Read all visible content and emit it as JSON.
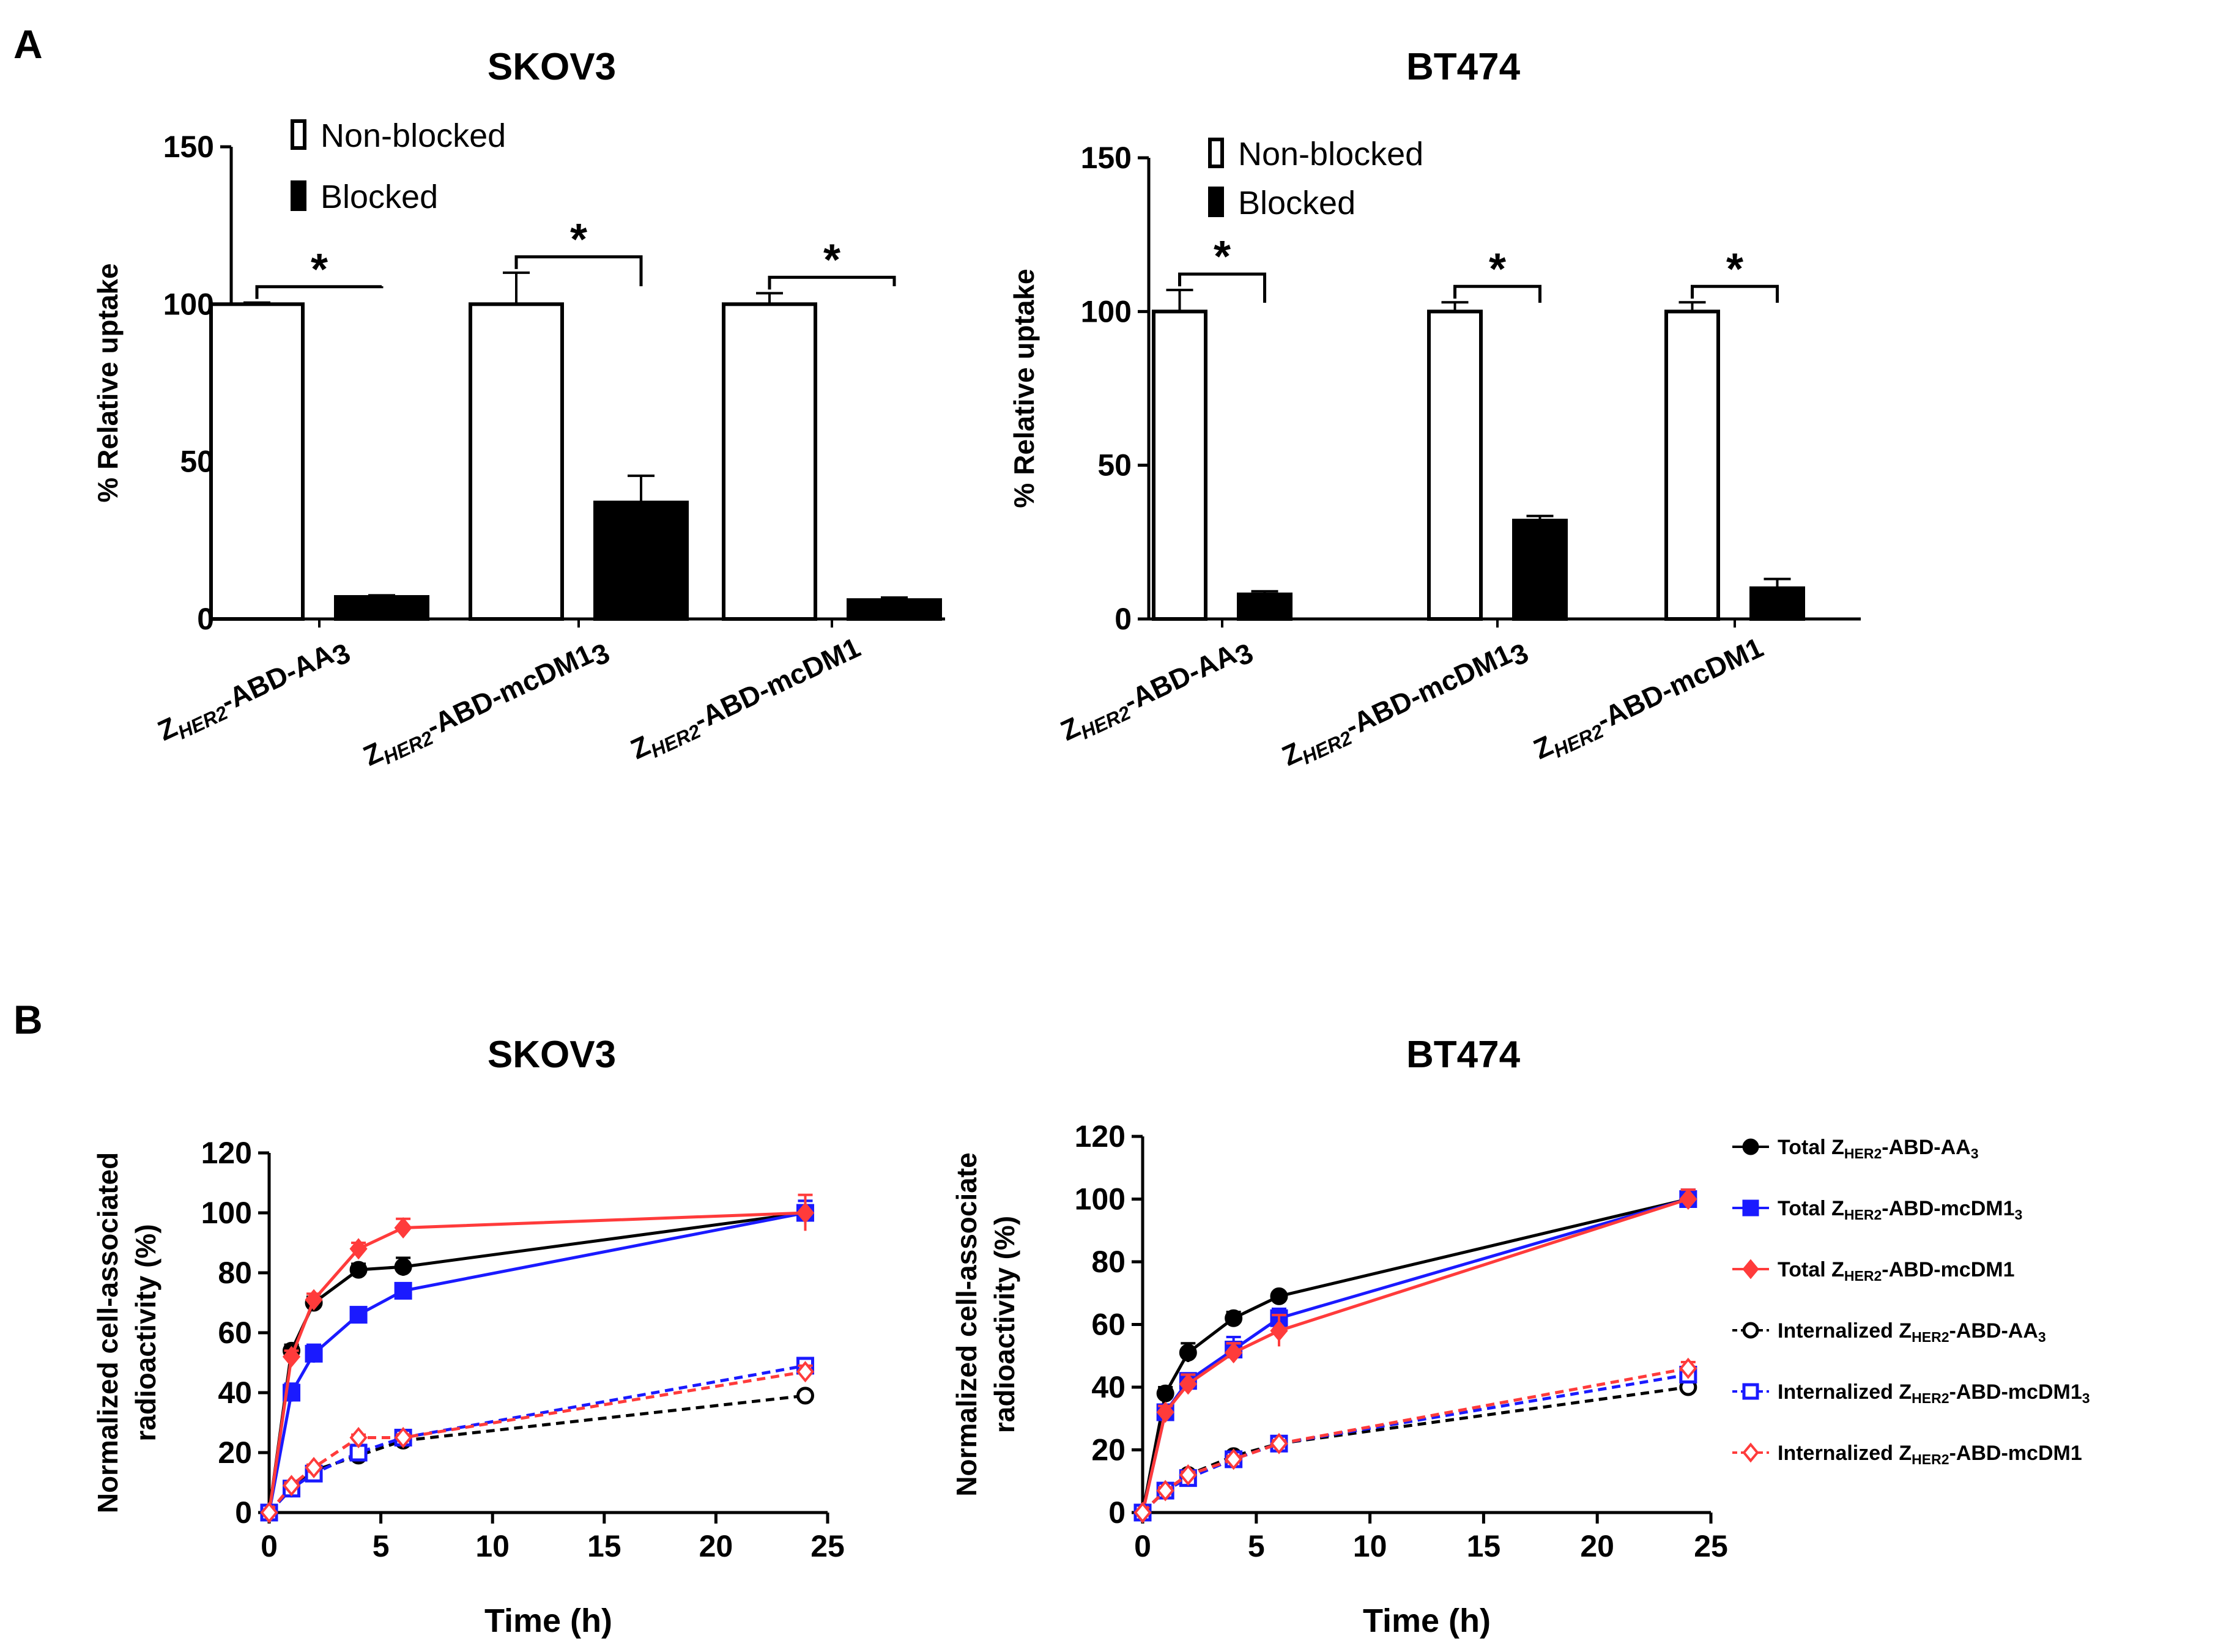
{
  "panel_labels": [
    "A",
    "B"
  ],
  "chart_data": [
    {
      "type": "bar",
      "title": "SKOV3",
      "ylabel": "% Relative uptake",
      "ylim": [
        0,
        150
      ],
      "yticks": [
        0,
        50,
        100,
        150
      ],
      "categories": [
        {
          "main": "Z",
          "sub": "HER2",
          "rest": "-ABD-AA",
          "sub2": "3"
        },
        {
          "main": "Z",
          "sub": "HER2",
          "rest": "-ABD-mcDM1",
          "sub2": "3"
        },
        {
          "main": "Z",
          "sub": "HER2",
          "rest": "-ABD-mcDM1",
          "sub2": ""
        }
      ],
      "series": [
        {
          "name": "Non-blocked",
          "fill": "#ffffff",
          "values": [
            100,
            100,
            100
          ],
          "errors": [
            0.5,
            10,
            3.5
          ]
        },
        {
          "name": "Blocked",
          "fill": "#000000",
          "values": [
            7,
            37,
            6
          ],
          "errors": [
            0.5,
            8.5,
            0.8
          ]
        }
      ],
      "significance": [
        "*",
        "*",
        "*"
      ],
      "legend_position": "top"
    },
    {
      "type": "bar",
      "title": "BT474",
      "ylabel": "% Relative uptake",
      "ylim": [
        0,
        150
      ],
      "yticks": [
        0,
        50,
        100,
        150
      ],
      "categories": [
        {
          "main": "Z",
          "sub": "HER2",
          "rest": "-ABD-AA",
          "sub2": "3"
        },
        {
          "main": "Z",
          "sub": "HER2",
          "rest": "-ABD-mcDM1",
          "sub2": "3"
        },
        {
          "main": "Z",
          "sub": "HER2",
          "rest": "-ABD-mcDM1",
          "sub2": ""
        }
      ],
      "series": [
        {
          "name": "Non-blocked",
          "fill": "#ffffff",
          "values": [
            100,
            100,
            100
          ],
          "errors": [
            7,
            3,
            3
          ]
        },
        {
          "name": "Blocked",
          "fill": "#000000",
          "values": [
            8,
            32,
            10
          ],
          "errors": [
            1,
            1.5,
            3
          ]
        }
      ],
      "significance": [
        "*",
        "*",
        "*"
      ],
      "legend_position": "top"
    },
    {
      "type": "line",
      "title": "SKOV3",
      "xlabel": "Time (h)",
      "ylabel_lines": [
        "Normalized cell-associated",
        "radioactivity (%)"
      ],
      "xlim": [
        0,
        25
      ],
      "ylim": [
        0,
        120
      ],
      "xticks": [
        0,
        5,
        10,
        15,
        20,
        25
      ],
      "yticks": [
        0,
        20,
        40,
        60,
        80,
        100,
        120
      ],
      "x": [
        0,
        1,
        2,
        4,
        6,
        24
      ],
      "series": [
        {
          "name": "Total Z HER2 -ABD-AA 3",
          "color": "#000000",
          "marker": "circle",
          "filled": true,
          "dashed": false,
          "values": [
            0,
            54,
            70,
            81,
            82,
            100
          ],
          "errors": [
            0,
            2,
            2,
            2,
            3,
            4
          ]
        },
        {
          "name": "Total Z HER2 -ABD-mcDM1 3",
          "color": "#1a1aff",
          "marker": "square",
          "filled": true,
          "dashed": false,
          "values": [
            0,
            40,
            53,
            66,
            74,
            100
          ],
          "errors": [
            0,
            3,
            3,
            2,
            2,
            4
          ]
        },
        {
          "name": "Total Z HER2 -ABD-mcDM1",
          "color": "#ff3b3b",
          "marker": "diamond",
          "filled": true,
          "dashed": false,
          "values": [
            0,
            52,
            71,
            88,
            95,
            100
          ],
          "errors": [
            0,
            2,
            2,
            2,
            3,
            6
          ]
        },
        {
          "name": "Internalized Z HER2 -ABD-AA 3",
          "color": "#000000",
          "marker": "circle",
          "filled": false,
          "dashed": true,
          "values": [
            0,
            8,
            14,
            19,
            24,
            39
          ],
          "errors": [
            0,
            1,
            1,
            1,
            1,
            1
          ]
        },
        {
          "name": "Internalized Z HER2 -ABD-mcDM1 3",
          "color": "#1a1aff",
          "marker": "square",
          "filled": false,
          "dashed": true,
          "values": [
            0,
            8,
            13,
            20,
            25,
            49
          ],
          "errors": [
            0,
            1,
            1,
            1,
            1,
            2
          ]
        },
        {
          "name": "Internalized Z HER2 -ABD-mcDM1",
          "color": "#ff3b3b",
          "marker": "diamond",
          "filled": false,
          "dashed": true,
          "values": [
            0,
            9,
            15,
            25,
            25,
            47
          ],
          "errors": [
            0,
            1,
            1,
            1,
            1,
            2
          ]
        }
      ]
    },
    {
      "type": "line",
      "title": "BT474",
      "xlabel": "Time (h)",
      "ylabel_lines": [
        "Normalized cell-associate",
        "radioactivity (%)"
      ],
      "xlim": [
        0,
        25
      ],
      "ylim": [
        0,
        120
      ],
      "xticks": [
        0,
        5,
        10,
        15,
        20,
        25
      ],
      "yticks": [
        0,
        20,
        40,
        60,
        80,
        100,
        120
      ],
      "x": [
        0,
        1,
        2,
        4,
        6,
        24
      ],
      "series": [
        {
          "name": "Total Z HER2 -ABD-AA 3",
          "color": "#000000",
          "marker": "circle",
          "filled": true,
          "dashed": false,
          "values": [
            0,
            38,
            51,
            62,
            69,
            100
          ],
          "errors": [
            0,
            2,
            3,
            2,
            1,
            3
          ]
        },
        {
          "name": "Total Z HER2 -ABD-mcDM1 3",
          "color": "#1a1aff",
          "marker": "square",
          "filled": true,
          "dashed": false,
          "values": [
            0,
            32,
            42,
            52,
            62,
            100
          ],
          "errors": [
            0,
            2,
            2,
            4,
            3,
            3
          ]
        },
        {
          "name": "Total Z HER2 -ABD-mcDM1",
          "color": "#ff3b3b",
          "marker": "diamond",
          "filled": true,
          "dashed": false,
          "values": [
            0,
            32,
            41,
            51,
            58,
            100
          ],
          "errors": [
            0,
            2,
            3,
            3,
            5,
            3
          ]
        },
        {
          "name": "Internalized Z HER2 -ABD-AA 3",
          "color": "#000000",
          "marker": "circle",
          "filled": false,
          "dashed": true,
          "values": [
            0,
            7,
            12,
            18,
            22,
            40
          ],
          "errors": [
            0,
            1,
            1,
            1,
            1,
            2
          ]
        },
        {
          "name": "Internalized Z HER2 -ABD-mcDM1 3",
          "color": "#1a1aff",
          "marker": "square",
          "filled": false,
          "dashed": true,
          "values": [
            0,
            7,
            11,
            17,
            22,
            44
          ],
          "errors": [
            0,
            1,
            1,
            1,
            1,
            2
          ]
        },
        {
          "name": "Internalized Z HER2 -ABD-mcDM1",
          "color": "#ff3b3b",
          "marker": "diamond",
          "filled": false,
          "dashed": true,
          "values": [
            0,
            7,
            12,
            17,
            22,
            46
          ],
          "errors": [
            0,
            1,
            1,
            1,
            1,
            2
          ]
        }
      ]
    }
  ],
  "legend_B": [
    {
      "prefix": "Total Z",
      "sub": "HER2",
      "rest": "-ABD-AA",
      "sub2": "3"
    },
    {
      "prefix": "Total Z",
      "sub": "HER2",
      "rest": "-ABD-mcDM1",
      "sub2": "3"
    },
    {
      "prefix": "Total Z",
      "sub": "HER2",
      "rest": "-ABD-mcDM1",
      "sub2": ""
    },
    {
      "prefix": "Internalized Z",
      "sub": "HER2",
      "rest": "-ABD-AA",
      "sub2": "3"
    },
    {
      "prefix": "Internalized Z",
      "sub": "HER2",
      "rest": "-ABD-mcDM1",
      "sub2": "3"
    },
    {
      "prefix": "Internalized Z",
      "sub": "HER2",
      "rest": "-ABD-mcDM1",
      "sub2": ""
    }
  ]
}
